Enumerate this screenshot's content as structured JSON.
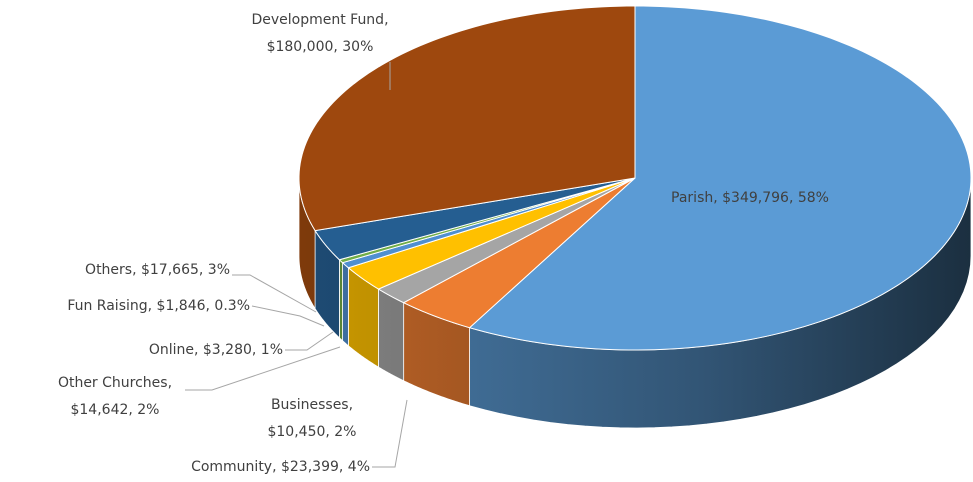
{
  "chart_data": {
    "type": "pie3d",
    "values": [
      349796,
      23399,
      10450,
      14642,
      3280,
      1846,
      17665,
      180000
    ],
    "value_labels": [
      [
        "Parish, $349,796, 58%"
      ],
      [
        "Community, $23,399, 4%"
      ],
      [
        "Businesses,",
        "$10,450, 2%"
      ],
      [
        "Other Churches,",
        "$14,642, 2%"
      ],
      [
        "Online, $3,280, 1%"
      ],
      [
        "Fun Raising, $1,846, 0.3%"
      ],
      [
        "Others, $17,665, 3%"
      ],
      [
        "Development Fund,",
        "$180,000, 30%"
      ]
    ],
    "colors": [
      "#5b9bd5",
      "#ed7d31",
      "#a5a5a5",
      "#ffc000",
      "#4f8fd0",
      "#70ad47",
      "#255e91",
      "#9e480e"
    ]
  }
}
